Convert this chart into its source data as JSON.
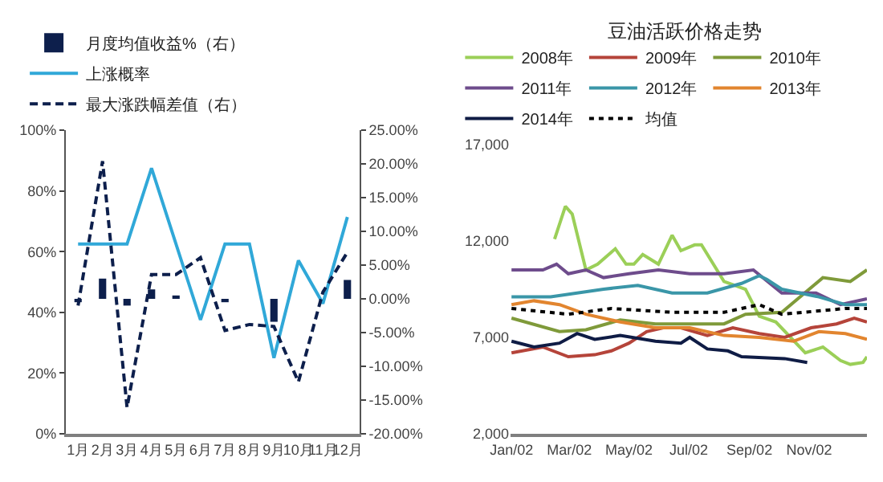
{
  "chart_data": [
    {
      "type": "line",
      "categories": [
        "1月",
        "2月",
        "3月",
        "4月",
        "5月",
        "6月",
        "7月",
        "8月",
        "9月",
        "10月",
        "11月",
        "12月"
      ],
      "series": [
        {
          "name": "月度均值收益%（右）",
          "type": "bar",
          "axis": "y2",
          "color": "#0d1f4c",
          "values": [
            -0.5,
            3.0,
            -1.0,
            1.4,
            0.5,
            0,
            -0.5,
            0,
            -3.4,
            0,
            0,
            2.8
          ]
        },
        {
          "name": "上涨概率",
          "type": "line",
          "color": "#30a8d8",
          "values": [
            62.5,
            62.5,
            62.5,
            87.5,
            62.5,
            37.5,
            62.5,
            62.5,
            25,
            57.1,
            42.9,
            71.4
          ]
        },
        {
          "name": "最大涨跌幅差值（右）",
          "type": "line",
          "axis": "y2",
          "line_style": "dashed",
          "color": "#0d1f4c",
          "values": [
            -1,
            20.4,
            -16.1,
            3.6,
            3.6,
            6.1,
            -4.7,
            -3.8,
            -4.1,
            -12.3,
            1.0,
            6.9
          ]
        }
      ],
      "ylim": [
        0,
        100
      ],
      "yticks": [
        {
          "value": 0,
          "label": "0%"
        },
        {
          "value": 20,
          "label": "20%"
        },
        {
          "value": 40,
          "label": "40%"
        },
        {
          "value": 60,
          "label": "60%"
        },
        {
          "value": 80,
          "label": "80%"
        },
        {
          "value": 100,
          "label": "100%"
        }
      ],
      "y2lim": [
        -20,
        25
      ],
      "y2ticks": [
        {
          "value": -20,
          "label": "-20.00%"
        },
        {
          "value": -15,
          "label": "-15.00%"
        },
        {
          "value": -10,
          "label": "-10.00%"
        },
        {
          "value": -5,
          "label": "-5.00%"
        },
        {
          "value": 0,
          "label": "0.00%"
        },
        {
          "value": 5,
          "label": "5.00%"
        },
        {
          "value": 10,
          "label": "10.00%"
        },
        {
          "value": 15,
          "label": "15.00%"
        },
        {
          "value": 20,
          "label": "20.00%"
        },
        {
          "value": 25,
          "label": "25.00%"
        }
      ],
      "legend": "top",
      "marker": "none",
      "line_style": "solid"
    },
    {
      "type": "line",
      "title": "豆油活跃价格走势",
      "series": [
        {
          "name": "2008年",
          "color": "#9bcf58",
          "x": [
            "--02-15",
            "--02-26",
            "--03-05",
            "--03-19",
            "--03-31",
            "--04-18",
            "--04-29",
            "--05-07",
            "--05-16",
            "--06-01",
            "--06-15",
            "--06-24",
            "--07-08",
            "--07-15",
            "--08-07",
            "--08-29",
            "--09-12",
            "--09-29",
            "--10-29",
            "--11-16",
            "--12-04",
            "--12-14",
            "--12-27",
            "--12-31"
          ],
          "values": [
            12100,
            13800,
            13400,
            10500,
            10800,
            11600,
            10800,
            10800,
            11300,
            10800,
            12300,
            11500,
            11800,
            11800,
            9900,
            9500,
            8100,
            7800,
            6200,
            6500,
            5800,
            5600,
            5700,
            6000
          ]
        },
        {
          "name": "2009年",
          "color": "#b5443a",
          "x": [
            "--01-02",
            "--02-03",
            "--03-01",
            "--03-28",
            "--04-14",
            "--05-02",
            "--05-20",
            "--06-06",
            "--06-24",
            "--07-21",
            "--08-16",
            "--09-12",
            "--10-08",
            "--11-04",
            "--11-30",
            "--12-18",
            "--12-31"
          ],
          "values": [
            6200,
            6500,
            6000,
            6100,
            6300,
            6700,
            7300,
            7500,
            7500,
            7100,
            7500,
            7200,
            7000,
            7500,
            7700,
            8000,
            7800
          ]
        },
        {
          "name": "2010年",
          "color": "#7f9a3a",
          "x": [
            "--01-02",
            "--02-20",
            "--03-19",
            "--04-23",
            "--05-29",
            "--07-08",
            "--08-07",
            "--08-29",
            "--10-05",
            "--11-16",
            "--12-14",
            "--12-31"
          ],
          "values": [
            8000,
            7300,
            7400,
            7900,
            7700,
            7700,
            7700,
            8200,
            8300,
            10100,
            9900,
            10500
          ]
        },
        {
          "name": "2011年",
          "color": "#6e4c8c",
          "x": [
            "--01-02",
            "--02-03",
            "--02-17",
            "--03-01",
            "--03-19",
            "--04-06",
            "--05-02",
            "--06-01",
            "--07-03",
            "--08-07",
            "--09-06",
            "--10-05",
            "--11-09",
            "--12-04",
            "--12-31"
          ],
          "values": [
            10500,
            10500,
            10800,
            10300,
            10500,
            10100,
            10300,
            10500,
            10300,
            10300,
            10500,
            9300,
            9300,
            8700,
            9000
          ]
        },
        {
          "name": "2012年",
          "color": "#3a96a8",
          "x": [
            "--01-02",
            "--02-11",
            "--04-06",
            "--05-11",
            "--06-15",
            "--07-21",
            "--08-25",
            "--09-12",
            "--09-20",
            "--10-05",
            "--11-12",
            "--12-09",
            "--12-31"
          ],
          "values": [
            9100,
            9100,
            9500,
            9700,
            9300,
            9300,
            9800,
            10200,
            10000,
            9500,
            9100,
            8700,
            8700
          ]
        },
        {
          "name": "2013年",
          "color": "#e2852f",
          "x": [
            "--01-02",
            "--01-25",
            "--02-20",
            "--03-19",
            "--04-23",
            "--05-29",
            "--07-03",
            "--08-07",
            "--09-12",
            "--10-17",
            "--11-12",
            "--12-09",
            "--12-31"
          ],
          "values": [
            8700,
            8900,
            8700,
            8200,
            7800,
            7500,
            7500,
            7100,
            7000,
            6800,
            7300,
            7200,
            6900
          ]
        },
        {
          "name": "2014年",
          "color": "#0f1c45",
          "x": [
            "--01-02",
            "--01-25",
            "--02-20",
            "--03-10",
            "--03-28",
            "--04-23",
            "--05-29",
            "--06-24",
            "--07-03",
            "--07-21",
            "--08-11",
            "--08-25",
            "--10-08",
            "--10-31"
          ],
          "values": [
            6800,
            6500,
            6700,
            7200,
            6900,
            7100,
            6800,
            6700,
            7000,
            6400,
            6300,
            6000,
            5900,
            5700
          ]
        },
        {
          "name": "均值",
          "color": "#000000",
          "line_style": "dotted",
          "x": [
            "--01-02",
            "--03-01",
            "--04-14",
            "--06-15",
            "--08-07",
            "--09-12",
            "--10-05",
            "--12-09",
            "--12-31"
          ],
          "values": [
            8500,
            8200,
            8500,
            8300,
            8300,
            8700,
            8200,
            8500,
            8500
          ]
        }
      ],
      "xlim": [
        "--01-01",
        "--12-31"
      ],
      "xticks": [
        {
          "value": "--01-02",
          "label": "Jan/02"
        },
        {
          "value": "--03-02",
          "label": "Mar/02"
        },
        {
          "value": "--05-02",
          "label": "May/02"
        },
        {
          "value": "--07-02",
          "label": "Jul/02"
        },
        {
          "value": "--09-02",
          "label": "Sep/02"
        },
        {
          "value": "--11-02",
          "label": "Nov/02"
        }
      ],
      "ylim": [
        2000,
        17000
      ],
      "yticks": [
        {
          "value": 2000,
          "label": "2,000"
        },
        {
          "value": 7000,
          "label": "7,000"
        },
        {
          "value": 12000,
          "label": "12,000"
        },
        {
          "value": 17000,
          "label": "17,000"
        }
      ],
      "legend": "top",
      "marker": "none",
      "line_style": "solid"
    }
  ]
}
